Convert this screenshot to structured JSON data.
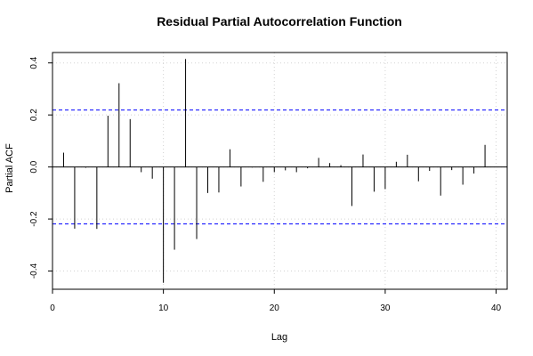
{
  "chart_data": {
    "type": "bar",
    "title": "Residual Partial Autocorrelation Function",
    "xlabel": "Lag",
    "ylabel": "Partial ACF",
    "xlim": [
      0,
      41
    ],
    "ylim": [
      -0.47,
      0.44
    ],
    "x_ticks": [
      0,
      10,
      20,
      30,
      40
    ],
    "y_ticks": [
      -0.4,
      -0.2,
      0.0,
      0.2,
      0.4
    ],
    "x_tick_labels": [
      "0",
      "10",
      "20",
      "30",
      "40"
    ],
    "y_tick_labels": [
      "-0.4",
      "-0.2",
      "0.0",
      "0.2",
      "0.4"
    ],
    "grid": true,
    "confidence_bound": 0.219,
    "colors": {
      "bars": "#000000",
      "bounds": "#0000ff",
      "grid": "#d3d3d3"
    },
    "x": [
      1,
      2,
      3,
      4,
      5,
      6,
      7,
      8,
      9,
      10,
      11,
      12,
      13,
      14,
      15,
      16,
      17,
      18,
      19,
      20,
      21,
      22,
      23,
      24,
      25,
      26,
      27,
      28,
      29,
      30,
      31,
      32,
      33,
      34,
      35,
      36,
      37,
      38,
      39
    ],
    "values": [
      0.055,
      -0.237,
      -0.003,
      -0.238,
      0.197,
      0.322,
      0.184,
      -0.02,
      -0.045,
      -0.445,
      -0.318,
      0.415,
      -0.277,
      -0.1,
      -0.098,
      0.068,
      -0.075,
      -0.002,
      -0.057,
      -0.02,
      -0.013,
      -0.02,
      -0.005,
      0.035,
      0.015,
      0.007,
      -0.15,
      0.048,
      -0.095,
      -0.085,
      0.02,
      0.047,
      -0.055,
      -0.015,
      -0.11,
      -0.012,
      -0.068,
      -0.025,
      0.085
    ]
  }
}
